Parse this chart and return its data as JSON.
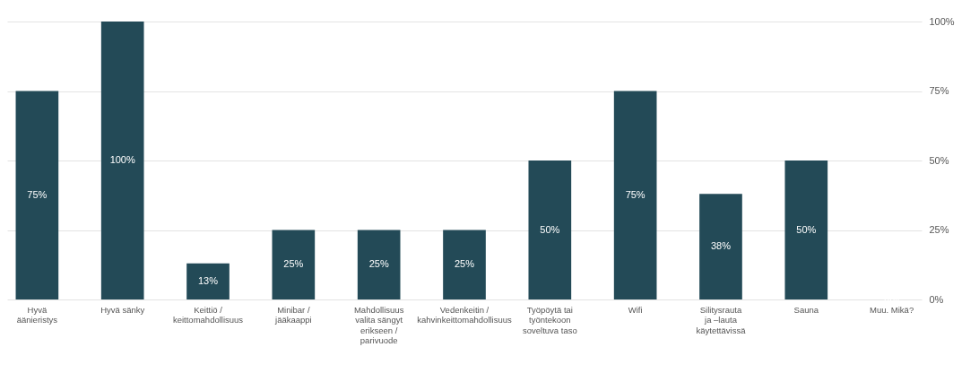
{
  "chart_data": {
    "type": "bar",
    "categories": [
      "Hyvä äänieristys",
      "Hyvä sänky",
      "Keittiö / keittomahdollisuus",
      "Minibar / jääkaappi",
      "Mahdollisuus valita sängyt erikseen / parivuode",
      "Vedenkeitin / kahvinkeittomahdollisuus",
      "Työpöytä tai työntekoon soveltuva taso",
      "Wifi",
      "Silitysrauta ja –lauta käytettävissä",
      "Sauna",
      "Muu. Mikä?"
    ],
    "values": [
      75,
      100,
      13,
      25,
      25,
      25,
      50,
      75,
      38,
      50,
      0
    ],
    "value_labels": [
      "75%",
      "100%",
      "13%",
      "25%",
      "25%",
      "25%",
      "50%",
      "75%",
      "38%",
      "50%",
      null
    ],
    "color": "#234a57",
    "ylim": [
      0,
      100
    ],
    "yticks": [
      {
        "value": 0,
        "label": "0%"
      },
      {
        "value": 25,
        "label": "25%"
      },
      {
        "value": 50,
        "label": "50%"
      },
      {
        "value": 75,
        "label": "75%"
      },
      {
        "value": 100,
        "label": "100%"
      }
    ],
    "grid": "y"
  }
}
